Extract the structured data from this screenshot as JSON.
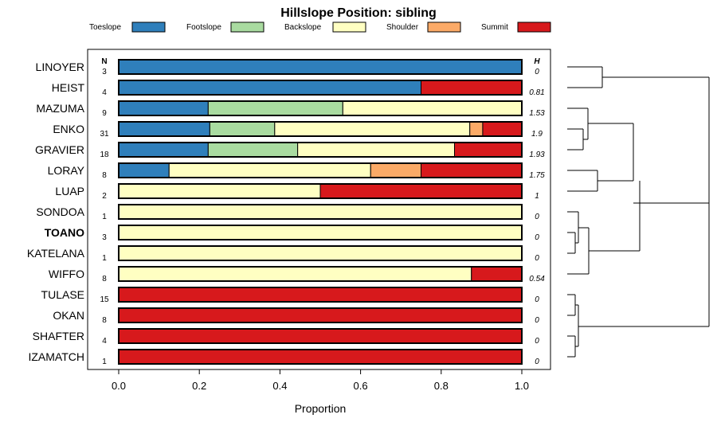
{
  "chart_data": {
    "type": "bar",
    "stacked": true,
    "orientation": "horizontal",
    "title": "Hillslope Position: sibling",
    "xlabel": "Proportion",
    "xlim": [
      0,
      1
    ],
    "xticks": [
      "0.0",
      "0.2",
      "0.4",
      "0.6",
      "0.8",
      "1.0"
    ],
    "n_header": "N",
    "h_header": "H",
    "highlight": "TOANO",
    "legend": [
      {
        "name": "Toeslope",
        "color": "#2f7fbb"
      },
      {
        "name": "Footslope",
        "color": "#a9dba0"
      },
      {
        "name": "Backslope",
        "color": "#ffffc2"
      },
      {
        "name": "Shoulder",
        "color": "#fbaa67"
      },
      {
        "name": "Summit",
        "color": "#d7191c"
      }
    ],
    "rows": [
      {
        "label": "LINOYER",
        "n": "3",
        "h": "0",
        "values": [
          1.0,
          0,
          0,
          0,
          0
        ]
      },
      {
        "label": "HEIST",
        "n": "4",
        "h": "0.81",
        "values": [
          0.75,
          0,
          0,
          0,
          0.25
        ]
      },
      {
        "label": "MAZUMA",
        "n": "9",
        "h": "1.53",
        "values": [
          0.222,
          0.334,
          0.444,
          0,
          0
        ]
      },
      {
        "label": "ENKO",
        "n": "31",
        "h": "1.9",
        "values": [
          0.226,
          0.161,
          0.484,
          0.032,
          0.097
        ]
      },
      {
        "label": "GRAVIER",
        "n": "18",
        "h": "1.93",
        "values": [
          0.222,
          0.222,
          0.389,
          0,
          0.167
        ]
      },
      {
        "label": "LORAY",
        "n": "8",
        "h": "1.75",
        "values": [
          0.125,
          0.0,
          0.5,
          0.125,
          0.25
        ]
      },
      {
        "label": "LUAP",
        "n": "2",
        "h": "1",
        "values": [
          0,
          0,
          0.5,
          0,
          0.5
        ]
      },
      {
        "label": "SONDOA",
        "n": "1",
        "h": "0",
        "values": [
          0,
          0,
          1.0,
          0,
          0
        ]
      },
      {
        "label": "TOANO",
        "n": "3",
        "h": "0",
        "values": [
          0,
          0,
          1.0,
          0,
          0
        ]
      },
      {
        "label": "KATELANA",
        "n": "1",
        "h": "0",
        "values": [
          0,
          0,
          1.0,
          0,
          0
        ]
      },
      {
        "label": "WIFFO",
        "n": "8",
        "h": "0.54",
        "values": [
          0,
          0,
          0.875,
          0,
          0.125
        ]
      },
      {
        "label": "TULASE",
        "n": "15",
        "h": "0",
        "values": [
          0,
          0,
          0,
          0,
          1.0
        ]
      },
      {
        "label": "OKAN",
        "n": "8",
        "h": "0",
        "values": [
          0,
          0,
          0,
          0,
          1.0
        ]
      },
      {
        "label": "SHAFTER",
        "n": "4",
        "h": "0",
        "values": [
          0,
          0,
          0,
          0,
          1.0
        ]
      },
      {
        "label": "IZAMATCH",
        "n": "1",
        "h": "0",
        "values": [
          0,
          0,
          0,
          0,
          1.0
        ]
      }
    ]
  }
}
